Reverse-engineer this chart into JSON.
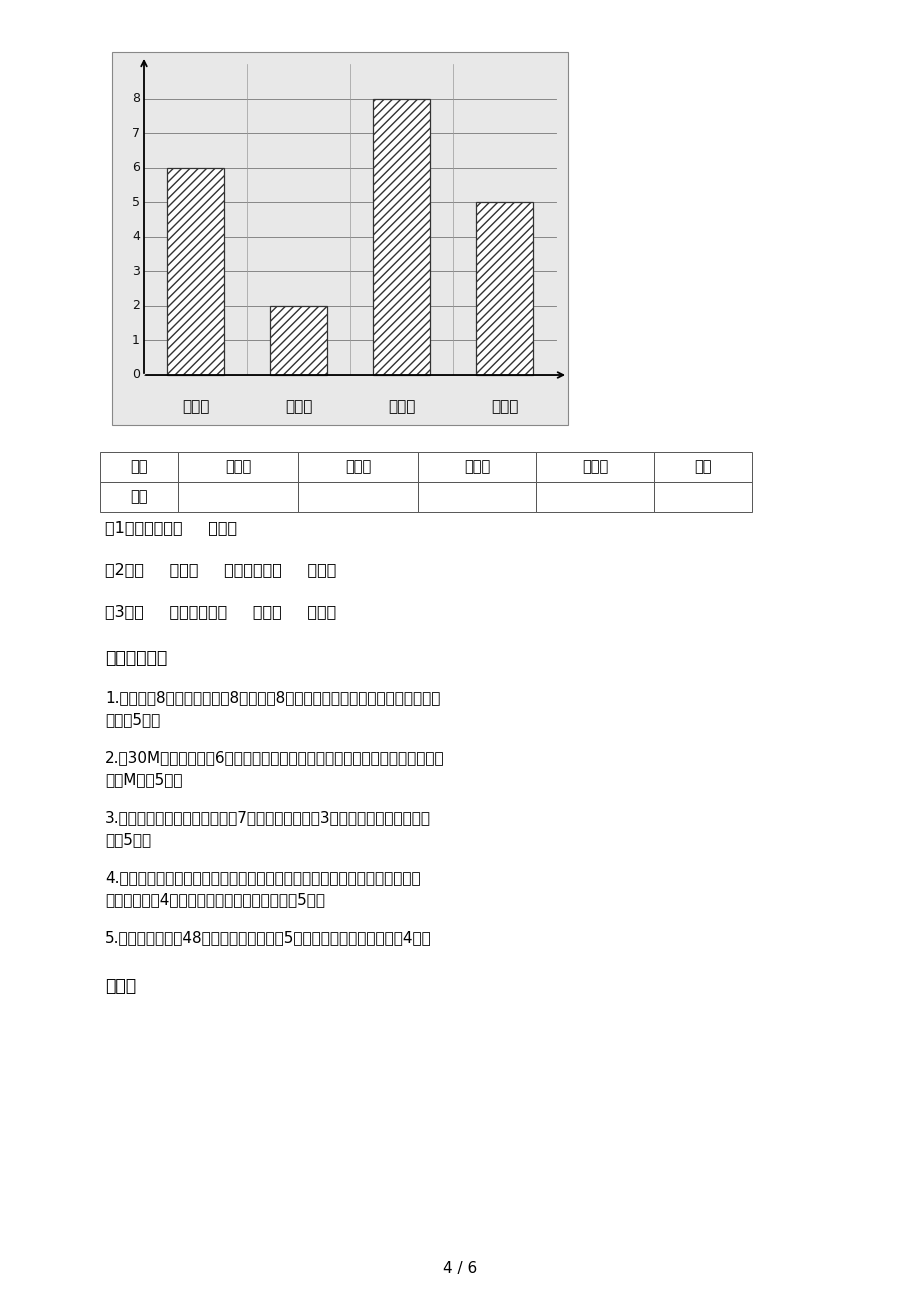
{
  "chart": {
    "categories": [
      "故事书",
      "科技书",
      "连环画",
      "漫画书"
    ],
    "values": [
      6,
      2,
      8,
      5
    ],
    "ylim": [
      0,
      9
    ],
    "yticks": [
      0,
      1,
      2,
      3,
      4,
      5,
      6,
      7,
      8
    ],
    "bg_color": "#e8e8e8",
    "bar_color": "white",
    "hatch": "////",
    "edgecolor": "#333333"
  },
  "table": {
    "row1": [
      "种类",
      "故事书",
      "科技书",
      "连环画",
      "漫画书",
      "合计"
    ],
    "row2": [
      "本数",
      "",
      "",
      "",
      "",
      ""
    ]
  },
  "questions_part1": [
    "（1）每格代表（     ）本。",
    "（2）（     ）比（     ）的本数多（     ）本。",
    "（3）（     ）的本数是（     ）的（     ）倍。"
  ],
  "section9_title": "九、解决问题",
  "problems": [
    "1.操场上有8个同学，又来了8个同学和8个女同学，现在操场上一共有多少个同\n学？（5分）",
    "2.在30M长的路边种了6棵数，树与树之间距离相等。求每两棵树之间的距离是\n多少M？（5分）",
    "3.有一根木头，工人要把它锤扑7段，锤开一处需要3分钟，锤完要花多少时间\n？（5分）",
    "4.熊爸爸买回的苹果又红又大，很快被熊妈妈吃了一半，小熊吃了剩下的苹果\n的一半，还剁4个，这些苹果一共有多少个？（5分）",
    "5.河里有鸭和鹅入48只，鸭子只数是鹅的5倍。鸭子和鹅各多少只？（4分）"
  ],
  "appendix_title": "附加题",
  "footer": "4 / 6",
  "page_bg": "#ffffff",
  "text_color": "#000000"
}
